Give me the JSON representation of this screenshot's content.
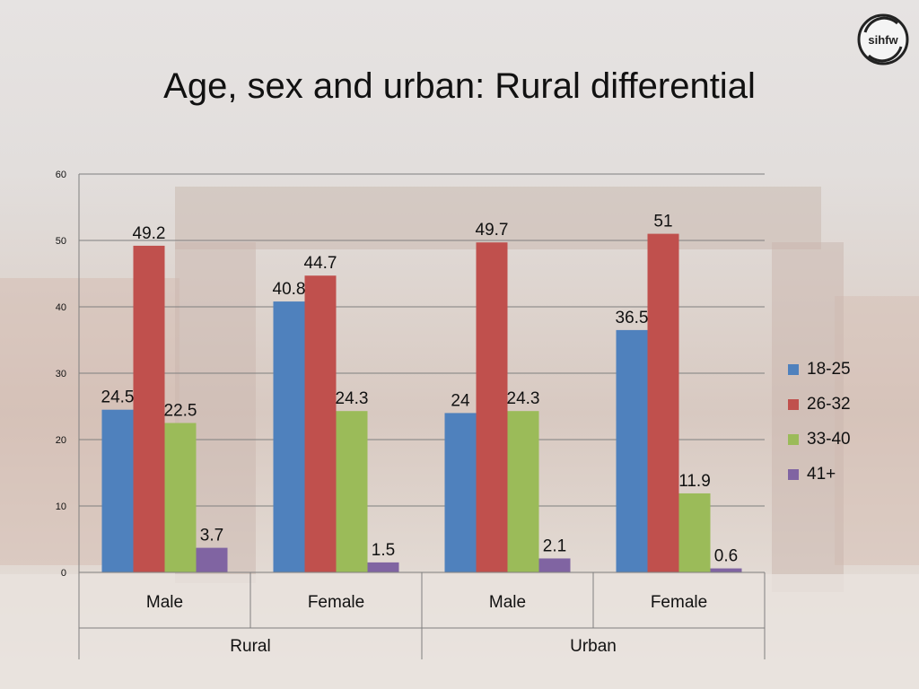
{
  "title": "Age, sex and urban: Rural differential",
  "logo": {
    "text": "sihfw"
  },
  "colors": {
    "18-25": "#4f81bd",
    "26-32": "#c0504d",
    "33-40": "#9bbb59",
    "41+": "#8064a2"
  },
  "chart_data": {
    "type": "bar",
    "title": "Age, sex and urban: Rural differential",
    "xlabel": "",
    "ylabel": "",
    "ylim": [
      0,
      60
    ],
    "yticks": [
      "0",
      "10",
      "20",
      "30",
      "40",
      "50",
      "60"
    ],
    "groups": [
      {
        "label": "Rural",
        "categories": [
          "Male",
          "Female"
        ]
      },
      {
        "label": "Urban",
        "categories": [
          "Male",
          "Female"
        ]
      }
    ],
    "categories": [
      "Male",
      "Female",
      "Male",
      "Female"
    ],
    "series": [
      {
        "name": "18-25",
        "values": [
          24.5,
          40.8,
          24,
          36.5
        ]
      },
      {
        "name": "26-32",
        "values": [
          49.2,
          44.7,
          49.7,
          51
        ]
      },
      {
        "name": "33-40",
        "values": [
          22.5,
          24.3,
          24.3,
          11.9
        ]
      },
      {
        "name": "41+",
        "values": [
          3.7,
          1.5,
          2.1,
          0.6
        ]
      }
    ],
    "legend_position": "right",
    "grid": true
  }
}
